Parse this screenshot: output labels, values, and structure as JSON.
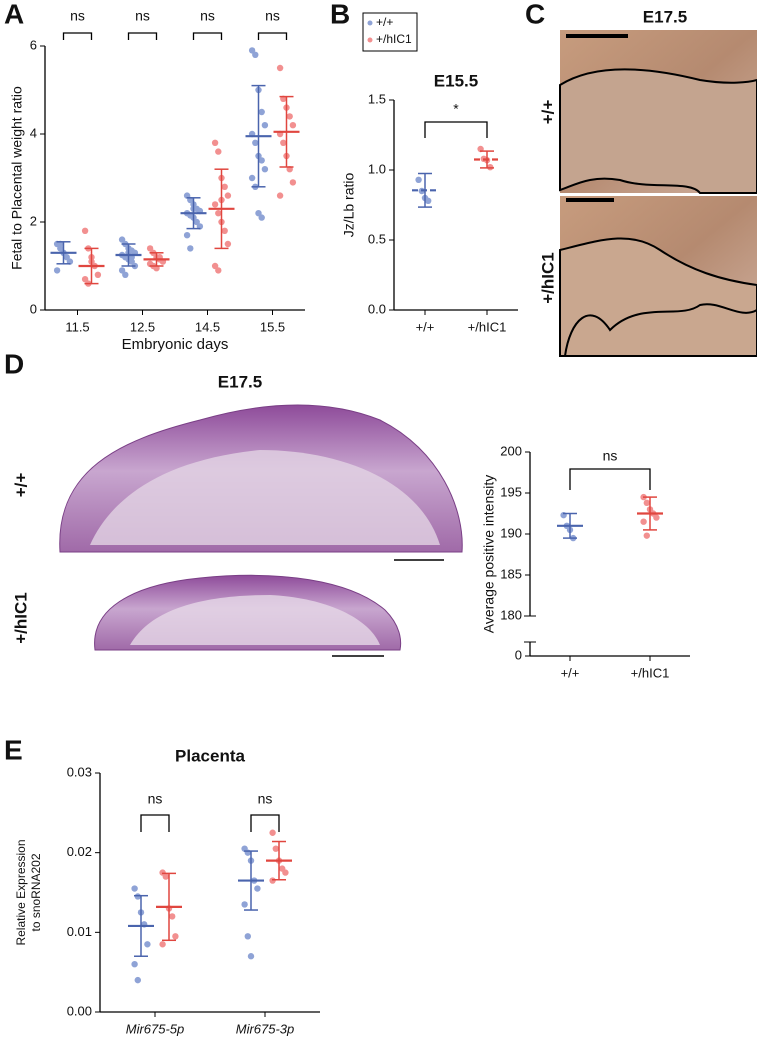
{
  "panel_letters": [
    "A",
    "B",
    "C",
    "D",
    "E"
  ],
  "image_panels": {
    "C": {
      "title": "E17.5",
      "row_labels": [
        "+/+",
        "+/hIC1"
      ]
    },
    "D": {
      "title": "E17.5",
      "row_labels": [
        "+/+",
        "+/hIC1"
      ]
    }
  },
  "chart_data": [
    {
      "type": "dot_plot",
      "ylabel": "Fetal to Placental weight ratio",
      "xlabel": "Embryonic days",
      "categories": [
        "11.5",
        "12.5",
        "14.5",
        "15.5"
      ],
      "ylim": [
        0,
        6
      ],
      "yticks": [
        0,
        2,
        4,
        6
      ],
      "significance": [
        "ns",
        "ns",
        "ns",
        "ns"
      ],
      "series": [
        {
          "color": "#8fa3d6",
          "line_color": "#4a64ad",
          "values": [
            [
              1.5,
              1.4,
              1.3,
              1.2,
              1.1,
              0.9,
              1.5
            ],
            [
              1.6,
              1.5,
              1.4,
              1.35,
              1.3,
              1.25,
              1.2,
              1.15,
              1.1,
              1.0,
              0.9,
              0.8,
              1.3,
              1.2
            ],
            [
              2.6,
              2.5,
              2.4,
              2.3,
              2.25,
              2.2,
              2.15,
              2.1,
              2.0,
              1.9,
              1.7,
              1.4,
              2.3
            ],
            [
              5.9,
              5.8,
              5.0,
              4.5,
              4.2,
              4.0,
              3.8,
              3.5,
              3.4,
              3.2,
              3.0,
              2.8,
              2.2,
              2.1
            ]
          ],
          "mean": [
            1.3,
            1.25,
            2.2,
            3.95
          ],
          "sd": [
            0.25,
            0.25,
            0.35,
            1.15
          ]
        },
        {
          "color": "#f29090",
          "line_color": "#e0463f",
          "values": [
            [
              1.8,
              1.4,
              1.2,
              1.0,
              0.8,
              0.7,
              0.6,
              1.1
            ],
            [
              1.4,
              1.3,
              1.2,
              1.15,
              1.1,
              1.05,
              1.0,
              0.95,
              1.2
            ],
            [
              3.8,
              3.6,
              3.0,
              2.8,
              2.6,
              2.4,
              2.2,
              2.0,
              1.8,
              1.5,
              1.0,
              0.9,
              2.5
            ],
            [
              5.5,
              4.8,
              4.6,
              4.4,
              4.2,
              4.0,
              3.8,
              3.5,
              3.2,
              2.9,
              2.6
            ]
          ],
          "mean": [
            1.0,
            1.15,
            2.3,
            4.05
          ],
          "sd": [
            0.4,
            0.15,
            0.9,
            0.8
          ]
        }
      ]
    },
    {
      "type": "dot_plot",
      "title": "E15.5",
      "ylabel": "Jz/Lb ratio",
      "categories": [
        "+/+",
        "+/hIC1"
      ],
      "ylim": [
        0,
        1.5
      ],
      "yticks": [
        {
          "value": 0,
          "label": "0.0"
        },
        {
          "value": 0.5,
          "label": "0.5"
        },
        {
          "value": 1,
          "label": "1.0"
        },
        {
          "value": 1.5,
          "label": "1.5"
        }
      ],
      "significance": [
        "*"
      ],
      "mean_line_style": "dashed",
      "legend": "top-left",
      "series": [
        {
          "name": "+/+",
          "color": "#8fa3d6",
          "line_color": "#4a64ad",
          "values": [
            [
              0.93,
              0.85,
              0.8,
              0.78
            ],
            null
          ],
          "mean": [
            0.855,
            null
          ],
          "sd": [
            0.12,
            null
          ]
        },
        {
          "name": "+/hIC1",
          "color": "#f29090",
          "line_color": "#e0463f",
          "values": [
            null,
            [
              1.15,
              1.08,
              1.07,
              1.02
            ]
          ],
          "mean": [
            null,
            1.075
          ],
          "sd": [
            null,
            0.06
          ]
        }
      ]
    },
    {
      "type": "dot_plot",
      "ylabel": "Average positive intensity",
      "categories": [
        "+/+",
        "+/hIC1"
      ],
      "ylim": [
        180,
        200
      ],
      "yticks": [
        0,
        180,
        185,
        190,
        195,
        200
      ],
      "axis_break": true,
      "significance": [
        "ns"
      ],
      "series": [
        {
          "color": "#8fa3d6",
          "line_color": "#4a64ad",
          "values": [
            [
              192.3,
              191,
              190.5,
              189.5
            ],
            null
          ],
          "mean": [
            191,
            null
          ],
          "sd": [
            1.5,
            null
          ]
        },
        {
          "color": "#f29090",
          "line_color": "#e0463f",
          "values": [
            null,
            [
              194.5,
              193.8,
              193,
              192.5,
              192,
              191.5,
              189.8
            ]
          ],
          "mean": [
            null,
            192.5
          ],
          "sd": [
            null,
            2
          ]
        }
      ]
    },
    {
      "type": "dot_plot",
      "title": "Placenta",
      "ylabel": [
        "Relative Expression",
        "to snoRNA202"
      ],
      "categories": [
        "Mir675-5p",
        "Mir675-3p"
      ],
      "category_style": "italic",
      "ylim": [
        0,
        0.03
      ],
      "yticks": [
        {
          "value": 0,
          "label": "0.00"
        },
        {
          "value": 0.01,
          "label": "0.01"
        },
        {
          "value": 0.02,
          "label": "0.02"
        },
        {
          "value": 0.03,
          "label": "0.03"
        }
      ],
      "significance": [
        "ns",
        "ns"
      ],
      "series": [
        {
          "color": "#8fa3d6",
          "line_color": "#4a64ad",
          "values": [
            [
              0.0155,
              0.0145,
              0.0125,
              0.011,
              0.0085,
              0.006,
              0.004
            ],
            [
              0.0205,
              0.02,
              0.019,
              0.0165,
              0.0155,
              0.0135,
              0.0095,
              0.007
            ]
          ],
          "mean": [
            0.0108,
            0.0165
          ],
          "sd": [
            0.0038,
            0.0037
          ]
        },
        {
          "color": "#f29090",
          "line_color": "#e0463f",
          "values": [
            [
              0.0175,
              0.017,
              0.013,
              0.012,
              0.0095,
              0.0085
            ],
            [
              0.0225,
              0.0205,
              0.019,
              0.018,
              0.0175,
              0.0165
            ]
          ],
          "mean": [
            0.0132,
            0.019
          ],
          "sd": [
            0.0042,
            0.0024
          ]
        }
      ]
    }
  ]
}
